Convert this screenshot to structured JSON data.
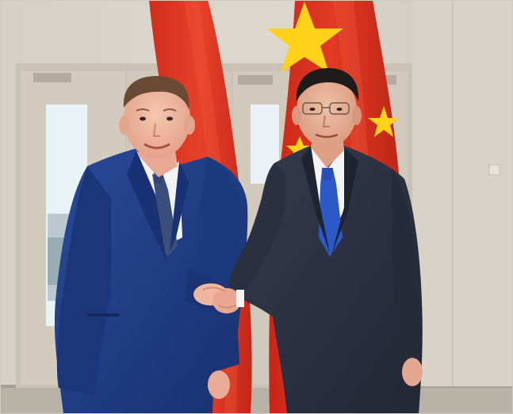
{
  "photo": {
    "scene": "two-men-handshake-in-front-of-flags",
    "colors": {
      "wall": "#d9d3c9",
      "door": "#cdc5b8",
      "window": "#e8f1f4",
      "flag_red": "#e0321f",
      "flag_red_shadow": "#b52516",
      "flag_star": "#ffd21a",
      "suit_left": "#1f3d86",
      "suit_right": "#2b3140",
      "shirt": "#f3f3f3",
      "tie_left": "#3b4f7d",
      "tie_right": "#2d58c8",
      "skin": "#f0b9a3",
      "hair_left": "#6b4a35",
      "hair_right": "#1e1c1b"
    }
  }
}
